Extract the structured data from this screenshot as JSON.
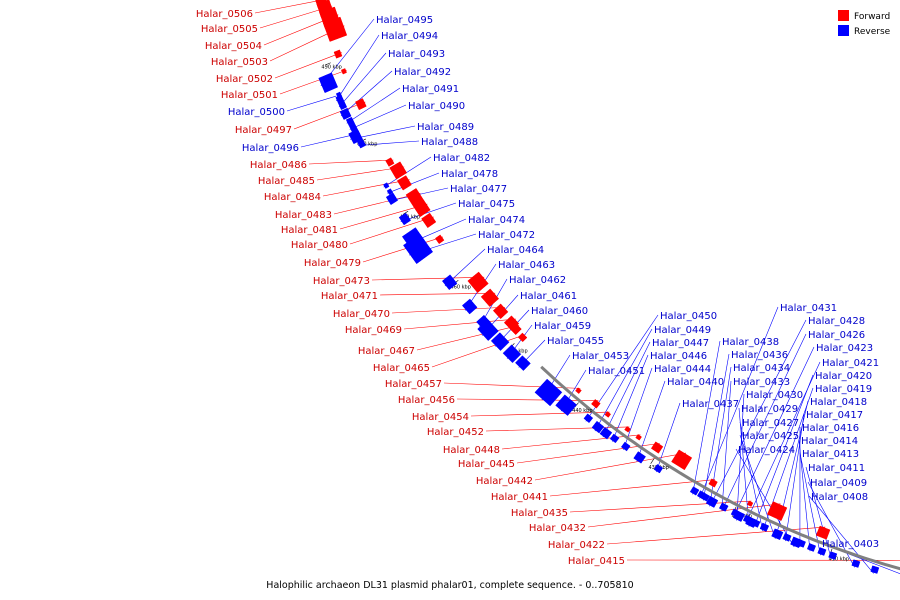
{
  "caption": "Halophilic archaeon DL31 plasmid phalar01, complete sequence. - 0..705810",
  "legend": [
    {
      "label": "Forward",
      "color": "#ff0000"
    },
    {
      "label": "Reverse",
      "color": "#0000ff"
    }
  ],
  "colors": {
    "forward": "#ff0000",
    "forward_text": "#cc0000",
    "reverse": "#0000ff",
    "reverse_text": "#0000cc",
    "backbone": "#808080"
  },
  "ticks": [
    "490 kbp",
    "480 kbp",
    "470 kbp",
    "460 kbp",
    "450 kbp",
    "440 kbp",
    "430 kbp",
    "420 kbp",
    "410 kbp",
    "400 kbp"
  ],
  "forward_genes": [
    "Halar_0506",
    "Halar_0505",
    "Halar_0504",
    "Halar_0503",
    "Halar_0502",
    "Halar_0501",
    "Halar_0497",
    "Halar_0486",
    "Halar_0485",
    "Halar_0484",
    "Halar_0483",
    "Halar_0481",
    "Halar_0480",
    "Halar_0479",
    "Halar_0473",
    "Halar_0471",
    "Halar_0470",
    "Halar_0469",
    "Halar_0467",
    "Halar_0465",
    "Halar_0457",
    "Halar_0456",
    "Halar_0454",
    "Halar_0452",
    "Halar_0448",
    "Halar_0445",
    "Halar_0442",
    "Halar_0441",
    "Halar_0435",
    "Halar_0432",
    "Halar_0422",
    "Halar_0415"
  ],
  "reverse_left_genes": [
    "Halar_0500",
    "Halar_0496"
  ],
  "reverse_col1": [
    "Halar_0495",
    "Halar_0494",
    "Halar_0493",
    "Halar_0492",
    "Halar_0491",
    "Halar_0490",
    "Halar_0489",
    "Halar_0488",
    "Halar_0482",
    "Halar_0478",
    "Halar_0477",
    "Halar_0475",
    "Halar_0474",
    "Halar_0472",
    "Halar_0464",
    "Halar_0463",
    "Halar_0462",
    "Halar_0461",
    "Halar_0460",
    "Halar_0459",
    "Halar_0455",
    "Halar_0453",
    "Halar_0451"
  ],
  "reverse_col2": [
    "Halar_0450",
    "Halar_0449",
    "Halar_0447",
    "Halar_0446",
    "Halar_0444",
    "Halar_0440",
    "Halar_0437"
  ],
  "reverse_col3": [
    "Halar_0438",
    "Halar_0436",
    "Halar_0434",
    "Halar_0433",
    "Halar_0430",
    "Halar_0429",
    "Halar_0427",
    "Halar_0425",
    "Halar_0424"
  ],
  "reverse_col4": [
    "Halar_0431",
    "Halar_0428",
    "Halar_0426",
    "Halar_0423",
    "Halar_0421",
    "Halar_0420",
    "Halar_0419",
    "Halar_0418",
    "Halar_0417",
    "Halar_0416",
    "Halar_0414",
    "Halar_0413",
    "Halar_0411",
    "Halar_0409",
    "Halar_0408"
  ],
  "reverse_col5": [
    "Halar_0403"
  ]
}
